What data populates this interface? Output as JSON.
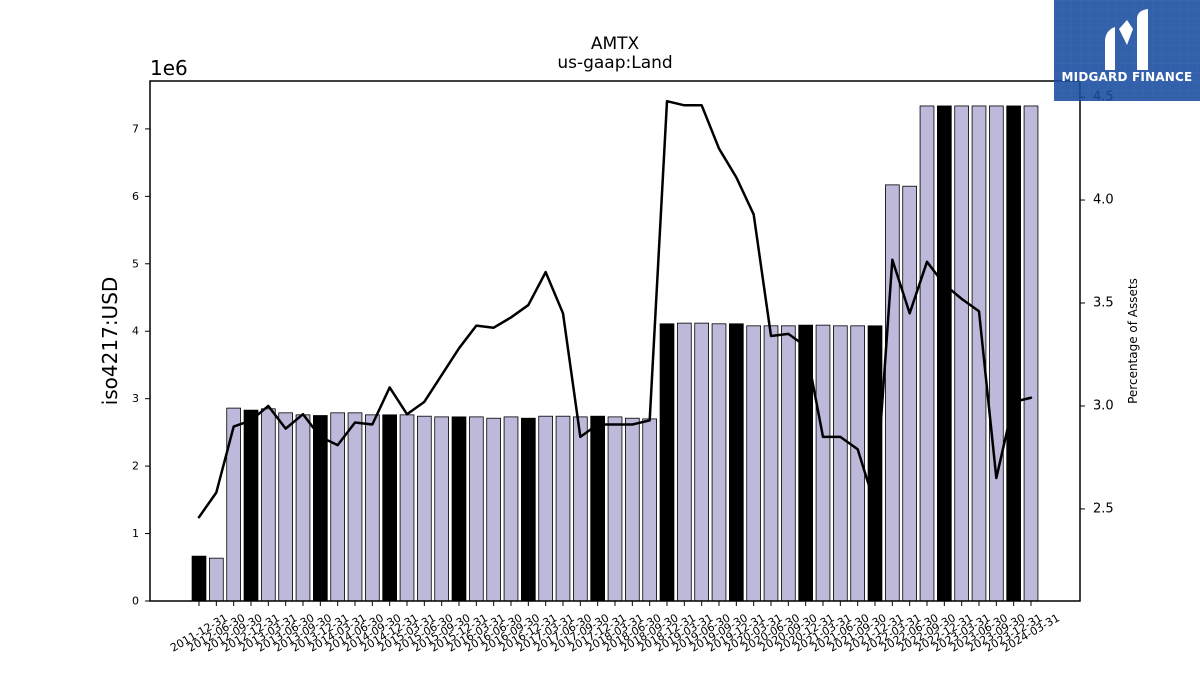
{
  "brand": {
    "logo_text": "MIDGARD FINANCE",
    "logo_background": "#164a9e",
    "logo_foreground": "#ffffff",
    "logo_icon": "midgard-m-icon"
  },
  "chart_data": {
    "type": "bar",
    "title": "AMTX",
    "subtitle": "us-gaap:Land",
    "categories": [
      "2011-12-31",
      "2012-06-30",
      "2012-09-30",
      "2012-12-31",
      "2013-03-31",
      "2013-06-30",
      "2013-09-30",
      "2013-12-31",
      "2014-03-31",
      "2014-06-30",
      "2014-09-30",
      "2014-12-31",
      "2015-03-31",
      "2015-06-30",
      "2015-09-30",
      "2015-12-31",
      "2016-03-31",
      "2016-06-30",
      "2016-09-30",
      "2016-12-31",
      "2017-03-31",
      "2017-06-30",
      "2017-09-30",
      "2017-12-31",
      "2018-03-31",
      "2018-06-30",
      "2018-09-30",
      "2018-12-31",
      "2019-03-31",
      "2019-06-30",
      "2019-09-30",
      "2019-12-31",
      "2020-03-31",
      "2020-06-30",
      "2020-09-30",
      "2020-12-31",
      "2021-03-31",
      "2021-06-30",
      "2021-09-30",
      "2021-12-31",
      "2022-03-31",
      "2022-06-30",
      "2022-09-30",
      "2022-12-31",
      "2023-03-31",
      "2023-06-30",
      "2023-09-30",
      "2023-12-31",
      "2024-03-31"
    ],
    "series": [
      {
        "type": "bar",
        "y_axis": "left",
        "values": [
          665000,
          635000,
          2860000,
          2830000,
          2850000,
          2790000,
          2760000,
          2750000,
          2790000,
          2790000,
          2760000,
          2760000,
          2760000,
          2740000,
          2730000,
          2730000,
          2730000,
          2710000,
          2730000,
          2710000,
          2740000,
          2740000,
          2730000,
          2740000,
          2730000,
          2710000,
          2700000,
          4110000,
          4120000,
          4120000,
          4110000,
          4110000,
          4080000,
          4080000,
          4080000,
          4090000,
          4090000,
          4080000,
          4080000,
          4080000,
          6170000,
          6150000,
          7340000,
          7340000,
          7340000,
          7340000,
          7340000,
          7340000,
          7340000
        ],
        "colors": [
          "#000000",
          "#bcb9da",
          "#bcb9da",
          "#000000",
          "#bcb9da",
          "#bcb9da",
          "#bcb9da",
          "#000000",
          "#bcb9da",
          "#bcb9da",
          "#bcb9da",
          "#000000",
          "#bcb9da",
          "#bcb9da",
          "#bcb9da",
          "#000000",
          "#bcb9da",
          "#bcb9da",
          "#bcb9da",
          "#000000",
          "#bcb9da",
          "#bcb9da",
          "#bcb9da",
          "#000000",
          "#bcb9da",
          "#bcb9da",
          "#bcb9da",
          "#000000",
          "#bcb9da",
          "#bcb9da",
          "#bcb9da",
          "#000000",
          "#bcb9da",
          "#bcb9da",
          "#bcb9da",
          "#000000",
          "#bcb9da",
          "#bcb9da",
          "#bcb9da",
          "#000000",
          "#bcb9da",
          "#bcb9da",
          "#bcb9da",
          "#000000",
          "#bcb9da",
          "#bcb9da",
          "#bcb9da",
          "#000000",
          "#bcb9da"
        ],
        "edge_color": "#000000"
      },
      {
        "type": "line",
        "y_axis": "right",
        "values": [
          2.46,
          2.58,
          2.9,
          2.93,
          3.0,
          2.89,
          2.96,
          2.85,
          2.81,
          2.92,
          2.91,
          3.09,
          2.96,
          3.02,
          3.15,
          3.28,
          3.39,
          3.38,
          3.43,
          3.49,
          3.65,
          3.45,
          2.85,
          2.91,
          2.91,
          2.91,
          2.93,
          4.48,
          4.46,
          4.46,
          4.25,
          4.11,
          3.93,
          3.34,
          3.35,
          3.29,
          2.85,
          2.85,
          2.79,
          2.52,
          3.71,
          3.45,
          3.7,
          3.59,
          3.52,
          3.46,
          2.65,
          3.02,
          3.04
        ],
        "color": "#000000"
      }
    ],
    "y_left": {
      "label": "iso4217:USD",
      "offset_text": "1e6",
      "range": [
        0,
        7710000
      ],
      "ticks": [
        {
          "value": 0,
          "label": "0"
        },
        {
          "value": 1000000,
          "label": "1"
        },
        {
          "value": 2000000,
          "label": "2"
        },
        {
          "value": 3000000,
          "label": "3"
        },
        {
          "value": 4000000,
          "label": "4"
        },
        {
          "value": 5000000,
          "label": "5"
        },
        {
          "value": 6000000,
          "label": "6"
        },
        {
          "value": 7000000,
          "label": "7"
        }
      ]
    },
    "y_right": {
      "label": "Percentage of Assets",
      "range": [
        2.053,
        4.578
      ],
      "ticks": [
        {
          "value": 2.5,
          "label": "2.5"
        },
        {
          "value": 3.0,
          "label": "3.0"
        },
        {
          "value": 3.5,
          "label": "3.5"
        },
        {
          "value": 4.0,
          "label": "4.0"
        },
        {
          "value": 4.5,
          "label": "4.5"
        }
      ]
    },
    "grid": false,
    "legend": "none"
  }
}
